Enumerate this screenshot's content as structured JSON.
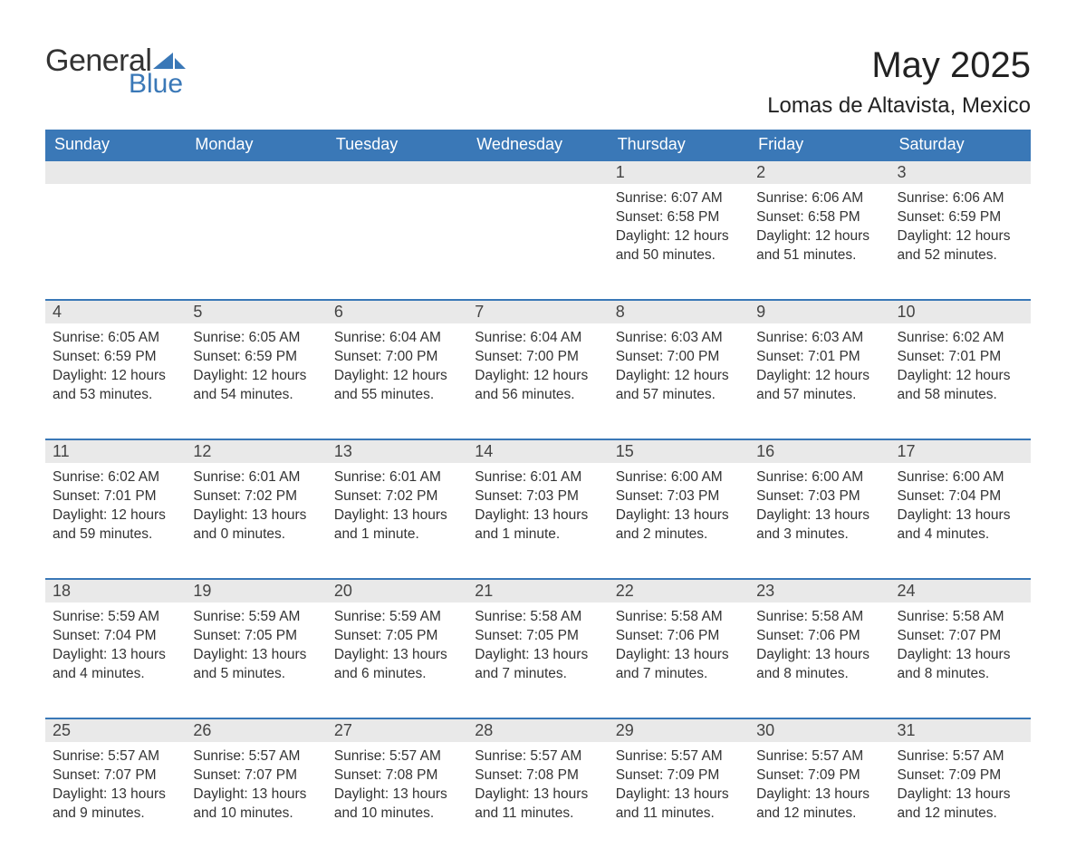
{
  "brand": {
    "word1": "General",
    "word2": "Blue",
    "color1": "#333333",
    "color2": "#3a78b7"
  },
  "title": "May 2025",
  "subtitle": "Lomas de Altavista, Mexico",
  "colors": {
    "header_bg": "#3a78b7",
    "header_fg": "#ffffff",
    "daynum_bg": "#e9e9e9",
    "text": "#333333",
    "rule": "#3a78b7"
  },
  "weekdays": [
    "Sunday",
    "Monday",
    "Tuesday",
    "Wednesday",
    "Thursday",
    "Friday",
    "Saturday"
  ],
  "weeks": [
    [
      null,
      null,
      null,
      null,
      {
        "n": "1",
        "sunrise": "6:07 AM",
        "sunset": "6:58 PM",
        "daylight": "12 hours and 50 minutes."
      },
      {
        "n": "2",
        "sunrise": "6:06 AM",
        "sunset": "6:58 PM",
        "daylight": "12 hours and 51 minutes."
      },
      {
        "n": "3",
        "sunrise": "6:06 AM",
        "sunset": "6:59 PM",
        "daylight": "12 hours and 52 minutes."
      }
    ],
    [
      {
        "n": "4",
        "sunrise": "6:05 AM",
        "sunset": "6:59 PM",
        "daylight": "12 hours and 53 minutes."
      },
      {
        "n": "5",
        "sunrise": "6:05 AM",
        "sunset": "6:59 PM",
        "daylight": "12 hours and 54 minutes."
      },
      {
        "n": "6",
        "sunrise": "6:04 AM",
        "sunset": "7:00 PM",
        "daylight": "12 hours and 55 minutes."
      },
      {
        "n": "7",
        "sunrise": "6:04 AM",
        "sunset": "7:00 PM",
        "daylight": "12 hours and 56 minutes."
      },
      {
        "n": "8",
        "sunrise": "6:03 AM",
        "sunset": "7:00 PM",
        "daylight": "12 hours and 57 minutes."
      },
      {
        "n": "9",
        "sunrise": "6:03 AM",
        "sunset": "7:01 PM",
        "daylight": "12 hours and 57 minutes."
      },
      {
        "n": "10",
        "sunrise": "6:02 AM",
        "sunset": "7:01 PM",
        "daylight": "12 hours and 58 minutes."
      }
    ],
    [
      {
        "n": "11",
        "sunrise": "6:02 AM",
        "sunset": "7:01 PM",
        "daylight": "12 hours and 59 minutes."
      },
      {
        "n": "12",
        "sunrise": "6:01 AM",
        "sunset": "7:02 PM",
        "daylight": "13 hours and 0 minutes."
      },
      {
        "n": "13",
        "sunrise": "6:01 AM",
        "sunset": "7:02 PM",
        "daylight": "13 hours and 1 minute."
      },
      {
        "n": "14",
        "sunrise": "6:01 AM",
        "sunset": "7:03 PM",
        "daylight": "13 hours and 1 minute."
      },
      {
        "n": "15",
        "sunrise": "6:00 AM",
        "sunset": "7:03 PM",
        "daylight": "13 hours and 2 minutes."
      },
      {
        "n": "16",
        "sunrise": "6:00 AM",
        "sunset": "7:03 PM",
        "daylight": "13 hours and 3 minutes."
      },
      {
        "n": "17",
        "sunrise": "6:00 AM",
        "sunset": "7:04 PM",
        "daylight": "13 hours and 4 minutes."
      }
    ],
    [
      {
        "n": "18",
        "sunrise": "5:59 AM",
        "sunset": "7:04 PM",
        "daylight": "13 hours and 4 minutes."
      },
      {
        "n": "19",
        "sunrise": "5:59 AM",
        "sunset": "7:05 PM",
        "daylight": "13 hours and 5 minutes."
      },
      {
        "n": "20",
        "sunrise": "5:59 AM",
        "sunset": "7:05 PM",
        "daylight": "13 hours and 6 minutes."
      },
      {
        "n": "21",
        "sunrise": "5:58 AM",
        "sunset": "7:05 PM",
        "daylight": "13 hours and 7 minutes."
      },
      {
        "n": "22",
        "sunrise": "5:58 AM",
        "sunset": "7:06 PM",
        "daylight": "13 hours and 7 minutes."
      },
      {
        "n": "23",
        "sunrise": "5:58 AM",
        "sunset": "7:06 PM",
        "daylight": "13 hours and 8 minutes."
      },
      {
        "n": "24",
        "sunrise": "5:58 AM",
        "sunset": "7:07 PM",
        "daylight": "13 hours and 8 minutes."
      }
    ],
    [
      {
        "n": "25",
        "sunrise": "5:57 AM",
        "sunset": "7:07 PM",
        "daylight": "13 hours and 9 minutes."
      },
      {
        "n": "26",
        "sunrise": "5:57 AM",
        "sunset": "7:07 PM",
        "daylight": "13 hours and 10 minutes."
      },
      {
        "n": "27",
        "sunrise": "5:57 AM",
        "sunset": "7:08 PM",
        "daylight": "13 hours and 10 minutes."
      },
      {
        "n": "28",
        "sunrise": "5:57 AM",
        "sunset": "7:08 PM",
        "daylight": "13 hours and 11 minutes."
      },
      {
        "n": "29",
        "sunrise": "5:57 AM",
        "sunset": "7:09 PM",
        "daylight": "13 hours and 11 minutes."
      },
      {
        "n": "30",
        "sunrise": "5:57 AM",
        "sunset": "7:09 PM",
        "daylight": "13 hours and 12 minutes."
      },
      {
        "n": "31",
        "sunrise": "5:57 AM",
        "sunset": "7:09 PM",
        "daylight": "13 hours and 12 minutes."
      }
    ]
  ],
  "labels": {
    "sunrise": "Sunrise: ",
    "sunset": "Sunset: ",
    "daylight": "Daylight: "
  }
}
